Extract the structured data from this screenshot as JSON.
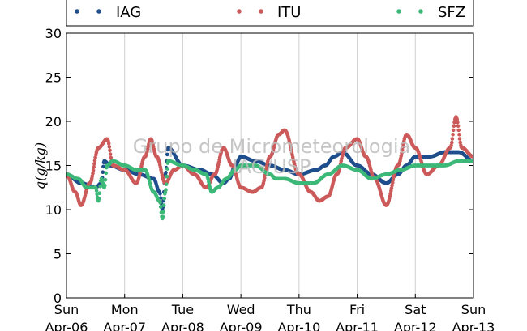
{
  "chart_data": {
    "type": "scatter",
    "ylabel": "q(g/kg)",
    "ylim": [
      0,
      30
    ],
    "yticks": [
      0,
      5,
      10,
      15,
      20,
      25,
      30
    ],
    "xlim": [
      0,
      7
    ],
    "xticks": [
      {
        "pos": 0,
        "day": "Sun",
        "date": "Apr-06"
      },
      {
        "pos": 1,
        "day": "Mon",
        "date": "Apr-07"
      },
      {
        "pos": 2,
        "day": "Tue",
        "date": "Apr-08"
      },
      {
        "pos": 3,
        "day": "Wed",
        "date": "Apr-09"
      },
      {
        "pos": 4,
        "day": "Thu",
        "date": "Apr-10"
      },
      {
        "pos": 5,
        "day": "Fri",
        "date": "Apr-11"
      },
      {
        "pos": 6,
        "day": "Sat",
        "date": "Apr-12"
      },
      {
        "pos": 7,
        "day": "Sun",
        "date": "Apr-13"
      }
    ],
    "grid": "vertical",
    "legend": "top",
    "watermark": [
      "Grupo de Micrometeorologia",
      "IAG/USP"
    ],
    "series": [
      {
        "name": "IAG",
        "color": "#1f4e8c",
        "x": [
          0,
          0.25,
          0.5,
          0.6,
          0.65,
          0.75,
          1.0,
          1.25,
          1.5,
          1.6,
          1.65,
          1.7,
          1.75,
          2.0,
          2.3,
          2.5,
          2.7,
          2.8,
          2.9,
          3.0,
          3.25,
          3.5,
          3.75,
          4.0,
          4.3,
          4.45,
          4.6,
          4.75,
          5.0,
          5.25,
          5.5,
          5.7,
          5.85,
          6.0,
          6.25,
          6.5,
          6.75,
          7.0
        ],
        "y": [
          14,
          13,
          12.5,
          13,
          15.5,
          15,
          14.5,
          14,
          13.5,
          12,
          10,
          14,
          17,
          15,
          14.5,
          14,
          13,
          13.5,
          15,
          16,
          15.5,
          15,
          14.5,
          14,
          14.5,
          15,
          16,
          16.5,
          15,
          14,
          13,
          14,
          15,
          16,
          16,
          16.5,
          16.5,
          15.5
        ]
      },
      {
        "name": "ITU",
        "color": "#cc5a5a",
        "x": [
          0,
          0.15,
          0.25,
          0.4,
          0.55,
          0.7,
          0.8,
          1.0,
          1.2,
          1.35,
          1.45,
          1.55,
          1.7,
          1.85,
          2.0,
          2.2,
          2.4,
          2.55,
          2.7,
          2.85,
          3.0,
          3.2,
          3.35,
          3.5,
          3.65,
          3.75,
          4.0,
          4.2,
          4.35,
          4.5,
          4.65,
          4.8,
          5.0,
          5.15,
          5.3,
          5.5,
          5.7,
          5.85,
          6.0,
          6.2,
          6.4,
          6.6,
          6.7,
          6.8,
          7.0
        ],
        "y": [
          14,
          12,
          10.5,
          13,
          17,
          18,
          15,
          14.5,
          13,
          16,
          18,
          16,
          13,
          14.5,
          15,
          14,
          12.5,
          14,
          17,
          15,
          12.5,
          12,
          12.5,
          16,
          18.5,
          19,
          14,
          12,
          11,
          11.5,
          14,
          17,
          18,
          16,
          13.5,
          10.5,
          15,
          18.5,
          17,
          14,
          15,
          17,
          20.5,
          17,
          16
        ]
      },
      {
        "name": "SFZ",
        "color": "#3cb878",
        "x": [
          0,
          0.2,
          0.35,
          0.5,
          0.55,
          0.6,
          0.65,
          0.7,
          0.8,
          1.0,
          1.2,
          1.35,
          1.5,
          1.6,
          1.65,
          1.7,
          1.75,
          2.0,
          2.2,
          2.4,
          2.5,
          2.6,
          2.75,
          2.9,
          3.0,
          3.25,
          3.5,
          3.6,
          3.75,
          4.0,
          4.25,
          4.5,
          4.75,
          5.0,
          5.25,
          5.5,
          5.75,
          6.0,
          6.25,
          6.5,
          6.75,
          7.0
        ],
        "y": [
          14,
          13.5,
          12.5,
          12.5,
          11,
          13.5,
          12.5,
          15,
          15.5,
          15,
          14.5,
          14.5,
          12,
          11,
          9,
          12,
          15.5,
          15,
          14.5,
          14,
          12,
          12.5,
          13.5,
          14.5,
          15,
          15,
          14,
          13.5,
          13.5,
          13,
          13,
          14,
          15,
          14.5,
          13.5,
          14,
          14.5,
          15,
          15,
          15,
          15.5,
          15.5
        ]
      }
    ]
  }
}
